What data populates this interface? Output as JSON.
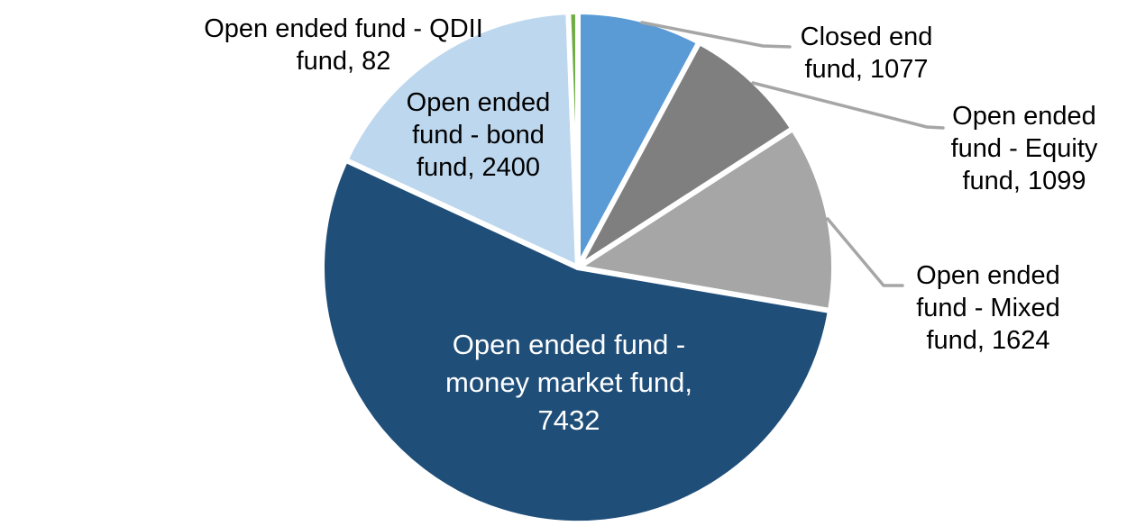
{
  "chart_data": {
    "type": "pie",
    "title": "",
    "legend": "none",
    "start_angle_deg": 0,
    "direction": "clockwise",
    "leader_line_color": "#A6A6A6",
    "label_text_color": "#000000",
    "background_color": "#FFFFFF",
    "slices": [
      {
        "name": "Closed end fund",
        "value": 1077,
        "color": "#5B9BD5",
        "label": "Closed end\nfund, 1077",
        "label_position": "outside",
        "has_leader_line": true
      },
      {
        "name": "Open ended fund - Equity fund",
        "value": 1099,
        "color": "#7F7F7F",
        "label": "Open ended\nfund - Equity\nfund, 1099",
        "label_position": "outside",
        "has_leader_line": true
      },
      {
        "name": "Open ended fund - Mixed fund",
        "value": 1624,
        "color": "#A6A6A6",
        "label": "Open ended\nfund - Mixed\nfund, 1624",
        "label_position": "outside",
        "has_leader_line": true
      },
      {
        "name": "Open ended fund - money market fund",
        "value": 7432,
        "color": "#1F4E79",
        "label": "Open ended fund -\nmoney market fund,\n7432",
        "label_position": "inside",
        "label_color": "#FFFFFF",
        "has_leader_line": false
      },
      {
        "name": "Open ended fund - bond fund",
        "value": 2400,
        "color": "#BDD7EE",
        "label": "Open ended\nfund - bond\nfund, 2400",
        "label_position": "over-slice",
        "has_leader_line": false
      },
      {
        "name": "Open ended fund - QDII fund",
        "value": 82,
        "color": "#70AD47",
        "label": "Open ended fund - QDII\nfund, 82",
        "label_position": "outside",
        "has_leader_line": false
      }
    ]
  }
}
